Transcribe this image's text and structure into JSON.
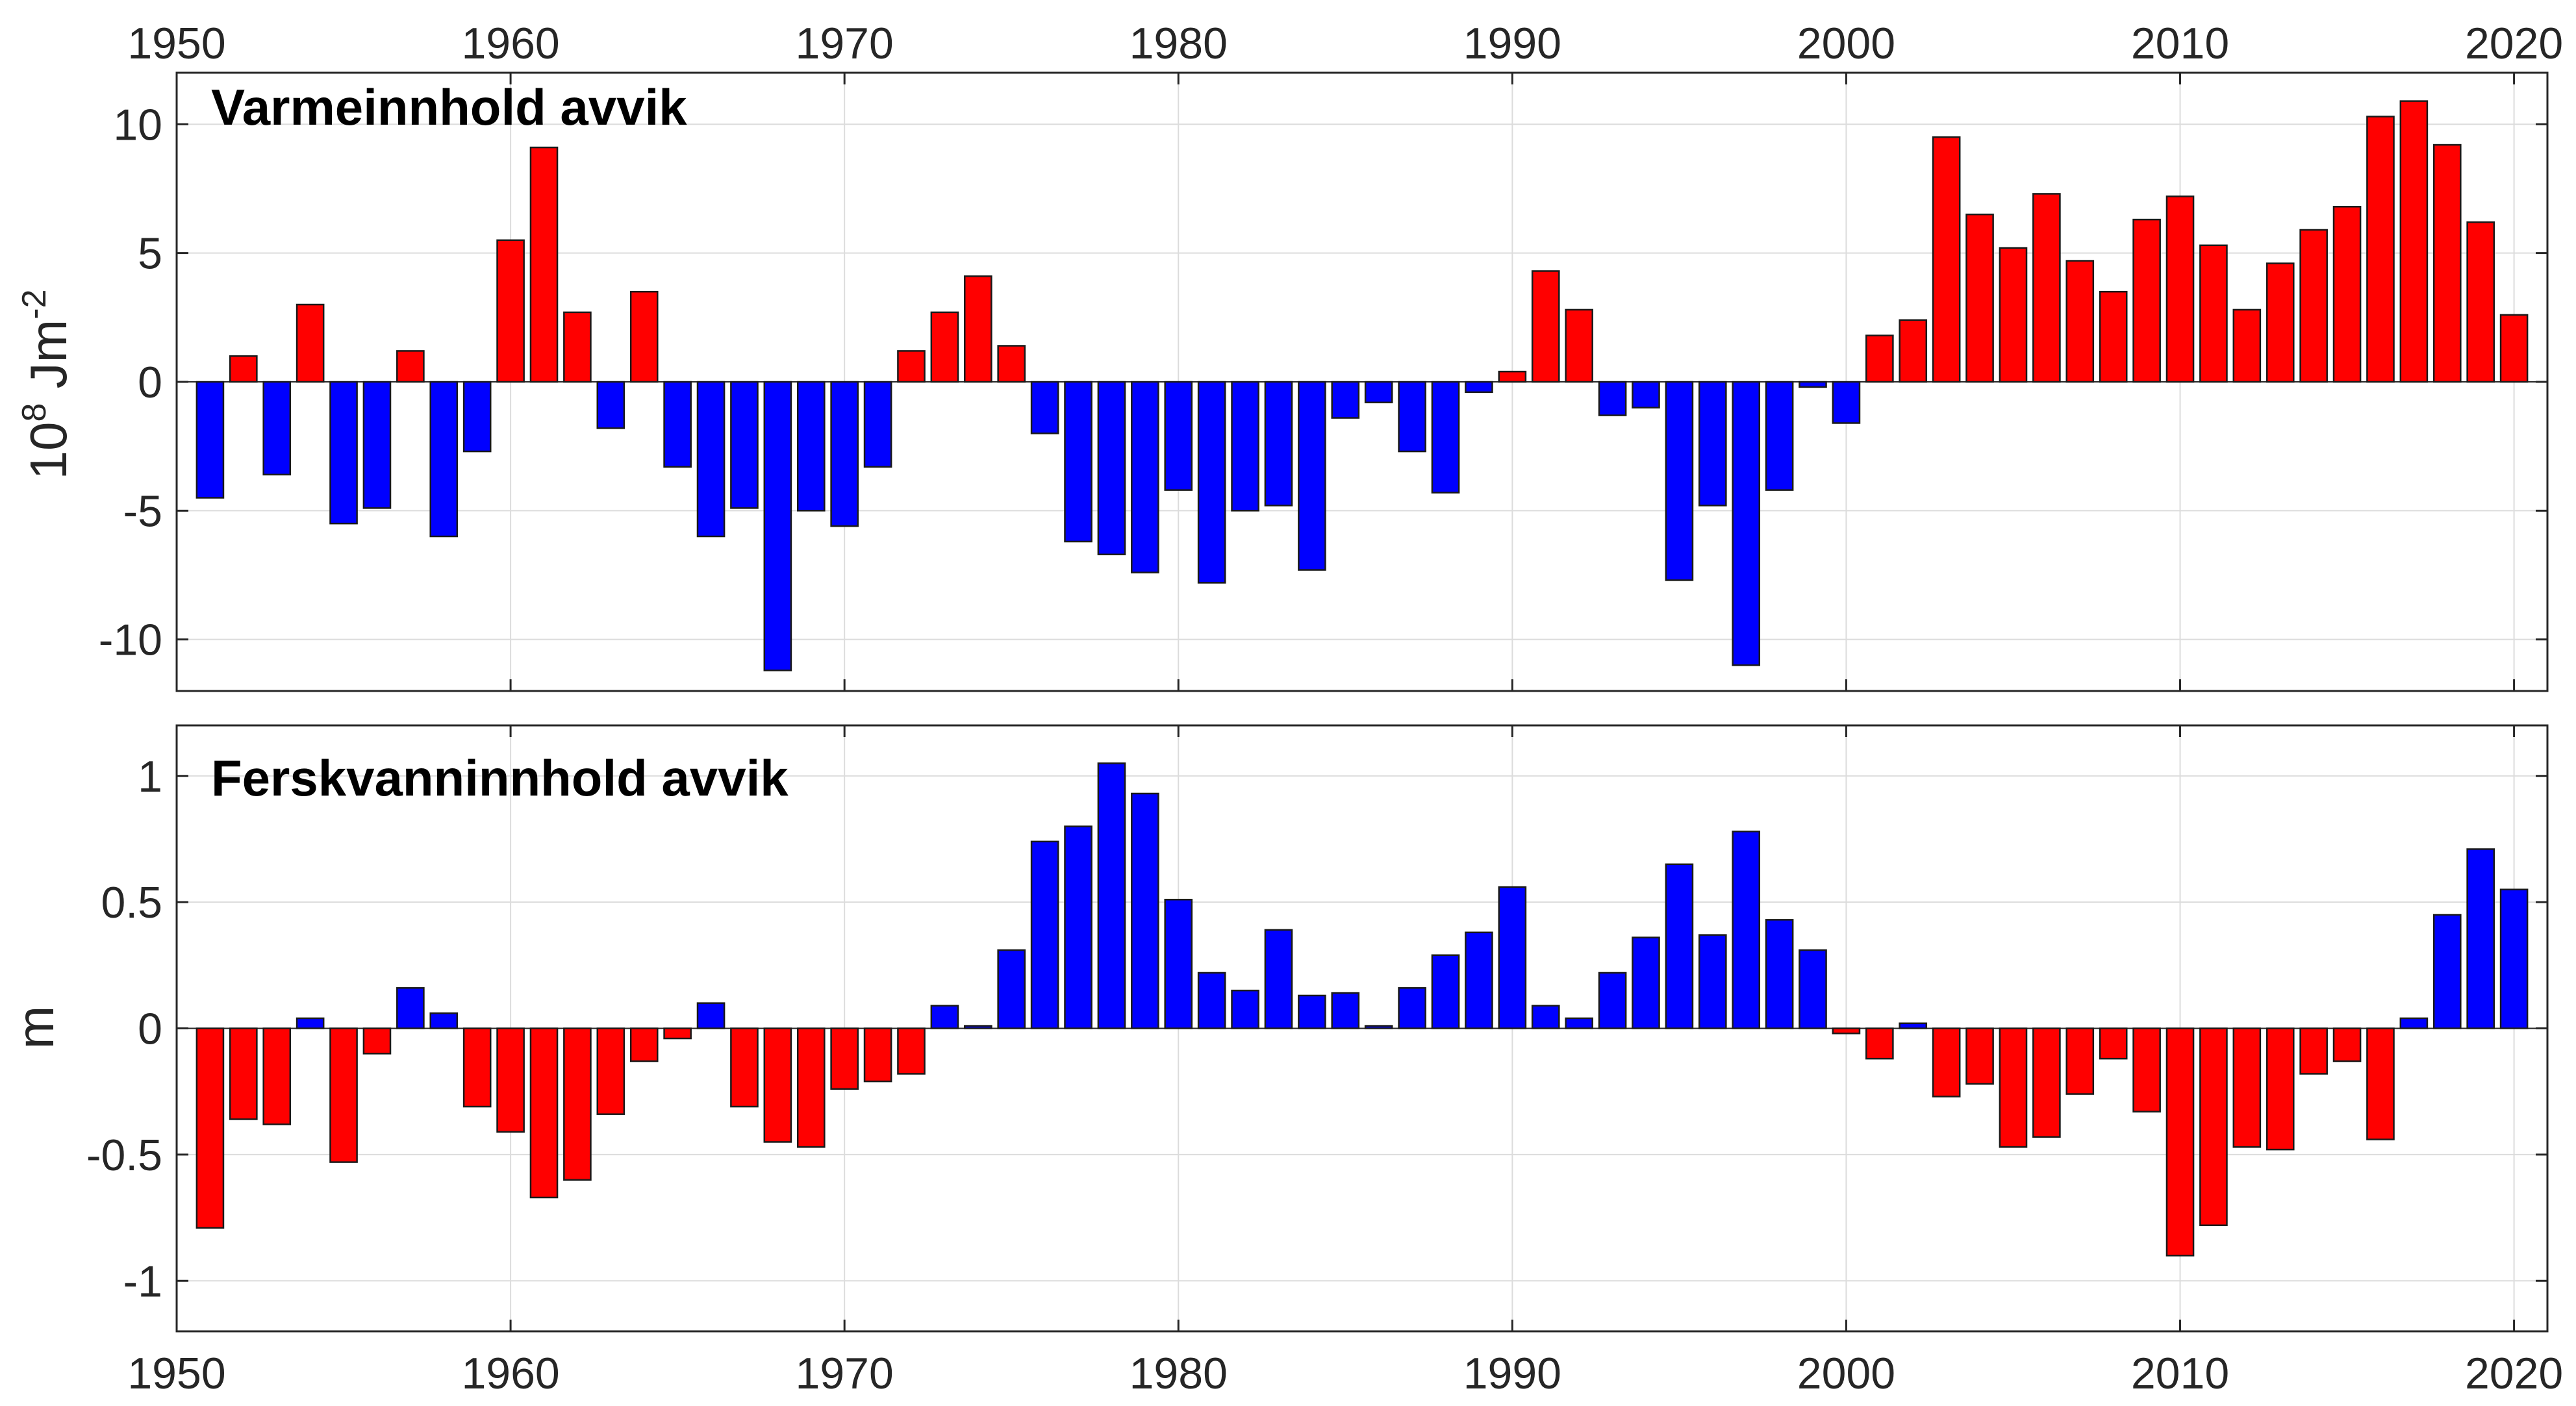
{
  "colors": {
    "positive": "#ff0000",
    "negative": "#0000ff",
    "grid": "#dcdcdc",
    "axis": "#262626"
  },
  "chart_data": [
    {
      "type": "bar",
      "title": "Varmeinnhold avvik",
      "ylabel_base": "10",
      "ylabel_exp": "8",
      "ylabel_unit": " Jm",
      "ylabel_unit_exp": "-2",
      "xlim": [
        1950,
        2021
      ],
      "ylim": [
        -12,
        12
      ],
      "xticks": [
        1950,
        1960,
        1970,
        1980,
        1990,
        2000,
        2010,
        2020
      ],
      "yticks": [
        -10,
        -5,
        0,
        5,
        10
      ],
      "ytick_labels": [
        "-10",
        "-5",
        "0",
        "5",
        "10"
      ],
      "grid": true,
      "color_rule": "positive values red, negative values blue",
      "x": [
        1951,
        1952,
        1953,
        1954,
        1955,
        1956,
        1957,
        1958,
        1959,
        1960,
        1961,
        1962,
        1963,
        1964,
        1965,
        1966,
        1967,
        1968,
        1969,
        1970,
        1971,
        1972,
        1973,
        1974,
        1975,
        1976,
        1977,
        1978,
        1979,
        1980,
        1981,
        1982,
        1983,
        1984,
        1985,
        1986,
        1987,
        1988,
        1989,
        1990,
        1991,
        1992,
        1993,
        1994,
        1995,
        1996,
        1997,
        1998,
        1999,
        2000,
        2001,
        2002,
        2003,
        2004,
        2005,
        2006,
        2007,
        2008,
        2009,
        2010,
        2011,
        2012,
        2013,
        2014,
        2015,
        2016,
        2017,
        2018,
        2019,
        2020
      ],
      "values": [
        -4.5,
        1.0,
        -3.6,
        3.0,
        -5.5,
        -4.9,
        1.2,
        -6.0,
        -2.7,
        5.5,
        9.1,
        2.7,
        -1.8,
        3.5,
        -3.3,
        -6.0,
        -4.9,
        -11.2,
        -5.0,
        -5.6,
        -3.3,
        1.2,
        2.7,
        4.1,
        1.4,
        -2.0,
        -6.2,
        -6.7,
        -7.4,
        -4.2,
        -7.8,
        -5.0,
        -4.8,
        -7.3,
        -1.4,
        -0.8,
        -2.7,
        -4.3,
        -0.4,
        0.4,
        4.3,
        2.8,
        -1.3,
        -1.0,
        -7.7,
        -4.8,
        -11.0,
        -4.2,
        -0.2,
        -1.6,
        1.8,
        2.4,
        9.5,
        6.5,
        5.2,
        7.3,
        4.7,
        3.5,
        6.3,
        7.2,
        5.3,
        2.8,
        4.6,
        5.9,
        6.8,
        10.3,
        10.9,
        9.2,
        6.2,
        2.6
      ]
    },
    {
      "type": "bar",
      "title": "Ferskvanninnhold avvik",
      "ylabel": "m",
      "xlim": [
        1950,
        2021
      ],
      "ylim": [
        -1.2,
        1.2
      ],
      "xticks": [
        1950,
        1960,
        1970,
        1980,
        1990,
        2000,
        2010,
        2020
      ],
      "yticks": [
        -1,
        -0.5,
        0,
        0.5,
        1
      ],
      "ytick_labels": [
        "-1",
        "-0.5",
        "0",
        "0.5",
        "1"
      ],
      "grid": true,
      "color_rule": "positive values blue, negative values red",
      "x": [
        1951,
        1952,
        1953,
        1954,
        1955,
        1956,
        1957,
        1958,
        1959,
        1960,
        1961,
        1962,
        1963,
        1964,
        1965,
        1966,
        1967,
        1968,
        1969,
        1970,
        1971,
        1972,
        1973,
        1974,
        1975,
        1976,
        1977,
        1978,
        1979,
        1980,
        1981,
        1982,
        1983,
        1984,
        1985,
        1986,
        1987,
        1988,
        1989,
        1990,
        1991,
        1992,
        1993,
        1994,
        1995,
        1996,
        1997,
        1998,
        1999,
        2000,
        2001,
        2002,
        2003,
        2004,
        2005,
        2006,
        2007,
        2008,
        2009,
        2010,
        2011,
        2012,
        2013,
        2014,
        2015,
        2016,
        2017,
        2018,
        2019,
        2020
      ],
      "values": [
        -0.79,
        -0.36,
        -0.38,
        0.04,
        -0.53,
        -0.1,
        0.16,
        0.06,
        -0.31,
        -0.41,
        -0.67,
        -0.6,
        -0.34,
        -0.13,
        -0.04,
        0.1,
        -0.31,
        -0.45,
        -0.47,
        -0.24,
        -0.21,
        -0.18,
        0.09,
        0.01,
        0.31,
        0.74,
        0.8,
        1.05,
        0.93,
        0.51,
        0.22,
        0.15,
        0.39,
        0.13,
        0.14,
        0.01,
        0.16,
        0.29,
        0.38,
        0.56,
        0.09,
        0.04,
        0.22,
        0.36,
        0.65,
        0.37,
        0.78,
        0.43,
        0.31,
        -0.02,
        -0.12,
        0.02,
        -0.27,
        -0.22,
        -0.47,
        -0.43,
        -0.26,
        -0.12,
        -0.33,
        -0.9,
        -0.78,
        -0.47,
        -0.48,
        -0.18,
        -0.13,
        -0.44,
        0.04,
        0.45,
        0.71,
        0.55
      ]
    }
  ]
}
